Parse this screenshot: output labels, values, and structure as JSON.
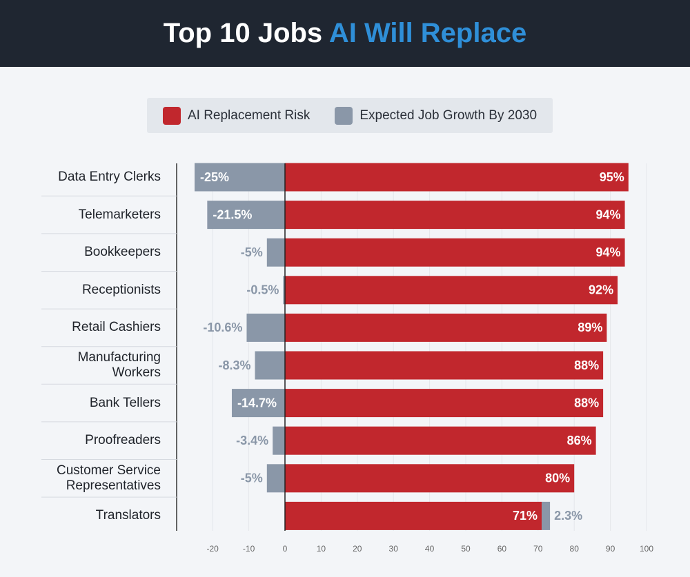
{
  "chart_data": {
    "type": "diverging-bar",
    "title": "Top 10 Jobs",
    "title_highlight": "AI Will Replace",
    "categories": [
      "Data Entry Clerks",
      "Telemarketers",
      "Bookkeepers",
      "Receptionists",
      "Retail Cashiers",
      "Manufacturing Workers",
      "Bank Tellers",
      "Proofreaders",
      "Customer Service Representatives",
      "Translators"
    ],
    "series": [
      {
        "name": "AI Replacement Risk",
        "color": "#c1272d",
        "values": [
          95,
          94,
          94,
          92,
          89,
          88,
          88,
          86,
          80,
          71
        ],
        "value_labels": [
          "95%",
          "94%",
          "94%",
          "92%",
          "89%",
          "88%",
          "88%",
          "86%",
          "80%",
          "71%"
        ]
      },
      {
        "name": "Expected Job Growth By 2030",
        "color": "#8a97a8",
        "values": [
          -25,
          -21.5,
          -5,
          -0.5,
          -10.6,
          -8.3,
          -14.7,
          -3.4,
          -5,
          2.3
        ],
        "value_labels": [
          "-25%",
          "-21.5%",
          "-5%",
          "-0.5%",
          "-10.6%",
          "-8.3%",
          "-14.7%",
          "-3.4%",
          "-5%",
          "2.3%"
        ]
      }
    ],
    "xlim": [
      -25,
      100
    ],
    "xticks": [
      -20,
      -10,
      0,
      10,
      20,
      30,
      40,
      50,
      60,
      70,
      80,
      90,
      100
    ],
    "grid": true
  }
}
